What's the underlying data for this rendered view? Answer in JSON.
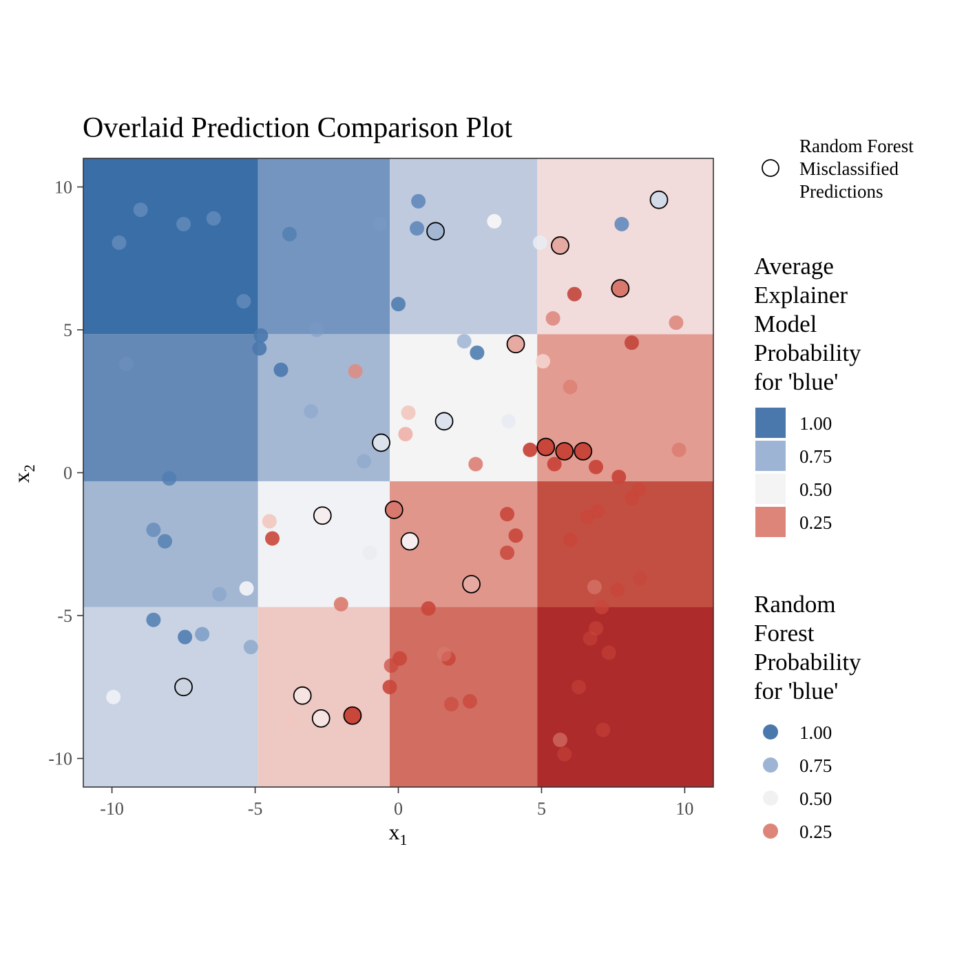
{
  "chart_data": {
    "type": "scatter",
    "title": "Overlaid Prediction Comparison Plot",
    "xlabel": "x",
    "xlabel_sub": "1",
    "ylabel": "x",
    "ylabel_sub": "2",
    "xlim": [
      -11,
      11
    ],
    "ylim": [
      -11,
      11
    ],
    "xticks": [
      -10,
      -5,
      0,
      5,
      10
    ],
    "yticks": [
      -10,
      -5,
      0,
      5,
      10
    ],
    "xtick_labels": [
      "-10",
      "-5",
      "0",
      "5",
      "10"
    ],
    "ytick_labels": [
      "-10",
      "-5",
      "0",
      "5",
      "10"
    ],
    "grid": false,
    "tiles": {
      "x_breaks": [
        -11,
        -4.9,
        -0.3,
        4.85,
        11
      ],
      "y_breaks": [
        -11,
        -4.7,
        -0.3,
        4.85,
        11
      ],
      "colors": [
        [
          "#c9d3e3",
          "#eec8c2",
          "#d16d61",
          "#ad2b2b"
        ],
        [
          "#a3b7d3",
          "#f1f2f5",
          "#e1968c",
          "#c34f43"
        ],
        [
          "#6489b7",
          "#a4b8d4",
          "#f4f4f4",
          "#e39c92"
        ],
        [
          "#396ea7",
          "#7395c0",
          "#bfcadf",
          "#f1dbdb"
        ]
      ]
    },
    "points": [
      {
        "x": -9.75,
        "y": 8.05,
        "color": "#7b9bc6",
        "alpha": 0.55
      },
      {
        "x": -9.0,
        "y": 9.2,
        "color": "#7b9bc6",
        "alpha": 0.55
      },
      {
        "x": -7.5,
        "y": 8.7,
        "color": "#7b9bc6",
        "alpha": 0.55
      },
      {
        "x": -6.45,
        "y": 8.9,
        "color": "#7b9bc6",
        "alpha": 0.55
      },
      {
        "x": -5.4,
        "y": 6.0,
        "color": "#7b9bc6",
        "alpha": 0.55
      },
      {
        "x": -3.8,
        "y": 8.35,
        "color": "#4f7db0",
        "alpha": 0.8
      },
      {
        "x": -0.65,
        "y": 8.7,
        "color": "#7b9bc6",
        "alpha": 0.55
      },
      {
        "x": 0.7,
        "y": 9.5,
        "color": "#5a85b8",
        "alpha": 0.85
      },
      {
        "x": 0.65,
        "y": 8.55,
        "color": "#5a85b8",
        "alpha": 0.85
      },
      {
        "x": 0.0,
        "y": 5.9,
        "color": "#4f7db0",
        "alpha": 0.9
      },
      {
        "x": 3.35,
        "y": 8.8,
        "color": "#f4f4f6",
        "alpha": 1
      },
      {
        "x": 4.95,
        "y": 8.05,
        "color": "#e8ecf3",
        "alpha": 0.9
      },
      {
        "x": 7.8,
        "y": 8.7,
        "color": "#5a85b8",
        "alpha": 0.85
      },
      {
        "x": 6.15,
        "y": 6.25,
        "color": "#c1453a",
        "alpha": 0.9
      },
      {
        "x": 5.4,
        "y": 5.4,
        "color": "#dc7e73",
        "alpha": 0.8
      },
      {
        "x": 9.7,
        "y": 5.25,
        "color": "#dc7e73",
        "alpha": 0.8
      },
      {
        "x": 8.15,
        "y": 4.55,
        "color": "#c1453a",
        "alpha": 0.9
      },
      {
        "x": -4.8,
        "y": 4.8,
        "color": "#4a78ad",
        "alpha": 0.9
      },
      {
        "x": -4.85,
        "y": 4.35,
        "color": "#4a78ad",
        "alpha": 0.9
      },
      {
        "x": -2.85,
        "y": 5.0,
        "color": "#7b9bc6",
        "alpha": 0.55
      },
      {
        "x": -9.5,
        "y": 3.8,
        "color": "#7b9bc6",
        "alpha": 0.25
      },
      {
        "x": -4.1,
        "y": 3.6,
        "color": "#4a78ad",
        "alpha": 0.9
      },
      {
        "x": -3.05,
        "y": 2.15,
        "color": "#8fa9cd",
        "alpha": 0.75
      },
      {
        "x": -1.5,
        "y": 3.55,
        "color": "#e08a7f",
        "alpha": 0.85
      },
      {
        "x": -1.2,
        "y": 0.4,
        "color": "#8fa9cd",
        "alpha": 0.75
      },
      {
        "x": 2.3,
        "y": 4.6,
        "color": "#9db4d4",
        "alpha": 0.85
      },
      {
        "x": 2.75,
        "y": 4.2,
        "color": "#4f7db0",
        "alpha": 0.9
      },
      {
        "x": 5.05,
        "y": 3.9,
        "color": "#f4d4cf",
        "alpha": 0.9
      },
      {
        "x": 6.0,
        "y": 3.0,
        "color": "#dc7e73",
        "alpha": 0.8
      },
      {
        "x": 0.35,
        "y": 2.1,
        "color": "#f1c6bf",
        "alpha": 0.9
      },
      {
        "x": 0.25,
        "y": 1.35,
        "color": "#ee b0a8",
        "alpha": 0.9
      },
      {
        "x": 3.85,
        "y": 1.8,
        "color": "#e8ecf3",
        "alpha": 0.9
      },
      {
        "x": 2.7,
        "y": 0.3,
        "color": "#dc7e73",
        "alpha": 0.9
      },
      {
        "x": 4.6,
        "y": 0.8,
        "color": "#c9463b",
        "alpha": 0.95
      },
      {
        "x": 5.45,
        "y": 0.3,
        "color": "#c9463b",
        "alpha": 0.95
      },
      {
        "x": 6.9,
        "y": 0.2,
        "color": "#c9463b",
        "alpha": 0.95
      },
      {
        "x": 9.8,
        "y": 0.8,
        "color": "#dc7e73",
        "alpha": 0.9
      },
      {
        "x": 7.7,
        "y": -0.15,
        "color": "#c9463b",
        "alpha": 0.95
      },
      {
        "x": 8.4,
        "y": -0.6,
        "color": "#c9463b",
        "alpha": 0.85
      },
      {
        "x": 8.15,
        "y": -0.9,
        "color": "#c9463b",
        "alpha": 0.85
      },
      {
        "x": 6.95,
        "y": -1.35,
        "color": "#c9463b",
        "alpha": 0.85
      },
      {
        "x": 6.6,
        "y": -1.55,
        "color": "#c9463b",
        "alpha": 0.85
      },
      {
        "x": 6.0,
        "y": -2.35,
        "color": "#c9463b",
        "alpha": 0.9
      },
      {
        "x": 8.45,
        "y": -3.7,
        "color": "#c9463b",
        "alpha": 0.55
      },
      {
        "x": 6.85,
        "y": -4.0,
        "color": "#dc7e73",
        "alpha": 0.6
      },
      {
        "x": 7.65,
        "y": -4.1,
        "color": "#c9463b",
        "alpha": 0.9
      },
      {
        "x": 7.1,
        "y": -4.7,
        "color": "#c9463b",
        "alpha": 0.75
      },
      {
        "x": 6.9,
        "y": -5.45,
        "color": "#c9463b",
        "alpha": 0.6
      },
      {
        "x": 6.7,
        "y": -5.8,
        "color": "#c9463b",
        "alpha": 0.5
      },
      {
        "x": 7.35,
        "y": -6.3,
        "color": "#c9463b",
        "alpha": 0.5
      },
      {
        "x": 6.3,
        "y": -7.5,
        "color": "#c9463b",
        "alpha": 0.5
      },
      {
        "x": 7.15,
        "y": -9.0,
        "color": "#c9463b",
        "alpha": 0.5
      },
      {
        "x": 5.65,
        "y": -9.35,
        "color": "#dc7e73",
        "alpha": 0.6
      },
      {
        "x": 5.8,
        "y": -9.85,
        "color": "#c9463b",
        "alpha": 0.5
      },
      {
        "x": -8.0,
        "y": -0.2,
        "color": "#4f7db0",
        "alpha": 0.8
      },
      {
        "x": -8.55,
        "y": -2.0,
        "color": "#4f7db0",
        "alpha": 0.6
      },
      {
        "x": -8.15,
        "y": -2.4,
        "color": "#4f7db0",
        "alpha": 0.8
      },
      {
        "x": -6.25,
        "y": -4.25,
        "color": "#7b9bc6",
        "alpha": 0.45
      },
      {
        "x": -5.3,
        "y": -4.05,
        "color": "#eceff5",
        "alpha": 1
      },
      {
        "x": -8.55,
        "y": -5.15,
        "color": "#4f7db0",
        "alpha": 0.85
      },
      {
        "x": -7.45,
        "y": -5.75,
        "color": "#4f7db0",
        "alpha": 0.9
      },
      {
        "x": -6.85,
        "y": -5.65,
        "color": "#7b9bc6",
        "alpha": 0.85
      },
      {
        "x": -5.15,
        "y": -6.1,
        "color": "#8fa9cd",
        "alpha": 0.85
      },
      {
        "x": -9.95,
        "y": -7.85,
        "color": "#eceff5",
        "alpha": 1
      },
      {
        "x": -4.5,
        "y": -1.7,
        "color": "#f1c6bf",
        "alpha": 0.9
      },
      {
        "x": -4.4,
        "y": -2.3,
        "color": "#c9463b",
        "alpha": 0.9
      },
      {
        "x": -1.0,
        "y": -2.8,
        "color": "#e5e7ec",
        "alpha": 0.5
      },
      {
        "x": 3.8,
        "y": -1.45,
        "color": "#c9463b",
        "alpha": 0.9
      },
      {
        "x": 4.1,
        "y": -2.2,
        "color": "#c9463b",
        "alpha": 0.9
      },
      {
        "x": 3.8,
        "y": -2.8,
        "color": "#c9463b",
        "alpha": 0.85
      },
      {
        "x": -2.0,
        "y": -4.6,
        "color": "#dc7e73",
        "alpha": 0.95
      },
      {
        "x": 1.05,
        "y": -4.75,
        "color": "#c9463b",
        "alpha": 0.9
      },
      {
        "x": 0.05,
        "y": -6.5,
        "color": "#c9463b",
        "alpha": 0.9
      },
      {
        "x": 1.75,
        "y": -6.5,
        "color": "#c9463b",
        "alpha": 0.9
      },
      {
        "x": -0.25,
        "y": -6.75,
        "color": "#c9463b",
        "alpha": 0.7
      },
      {
        "x": 1.6,
        "y": -6.35,
        "color": "#dc7e73",
        "alpha": 0.5
      },
      {
        "x": -0.3,
        "y": -7.5,
        "color": "#c9463b",
        "alpha": 0.9
      },
      {
        "x": 2.5,
        "y": -8.0,
        "color": "#c9463b",
        "alpha": 0.75
      },
      {
        "x": 1.85,
        "y": -8.1,
        "color": "#c9463b",
        "alpha": 0.65
      },
      {
        "x": -3.8,
        "y": -8.65,
        "color": "#f1c6bf",
        "alpha": 0.6
      },
      {
        "x": -1.6,
        "y": -8.5,
        "color": "#c9463b",
        "alpha": 0.9
      }
    ],
    "misclassified": [
      {
        "x": 9.1,
        "y": 9.55,
        "color": "#d3dbe8"
      },
      {
        "x": 1.3,
        "y": 8.45,
        "color": "#a3b7d3"
      },
      {
        "x": 5.65,
        "y": 7.95,
        "color": "#e7aaa2"
      },
      {
        "x": 7.75,
        "y": 6.45,
        "color": "#d9796d"
      },
      {
        "x": 4.1,
        "y": 4.5,
        "color": "#e7aaa2"
      },
      {
        "x": 1.6,
        "y": 1.8,
        "color": "#dce3ed"
      },
      {
        "x": -0.6,
        "y": 1.05,
        "color": "#dce3ed"
      },
      {
        "x": 5.15,
        "y": 0.9,
        "color": "#c9463b"
      },
      {
        "x": 5.8,
        "y": 0.75,
        "color": "#c9463b"
      },
      {
        "x": 6.45,
        "y": 0.75,
        "color": "#c9463b"
      },
      {
        "x": -2.65,
        "y": -1.5,
        "color": "#f6edee"
      },
      {
        "x": -0.15,
        "y": -1.3,
        "color": "#d9796d"
      },
      {
        "x": 0.4,
        "y": -2.4,
        "color": "#f6edee"
      },
      {
        "x": 2.55,
        "y": -3.9,
        "color": "#e7aaa2"
      },
      {
        "x": -7.5,
        "y": -7.5,
        "color": "#ccd3e1"
      },
      {
        "x": -3.35,
        "y": -7.8,
        "color": "#f6e4e2"
      },
      {
        "x": -2.7,
        "y": -8.6,
        "color": "#f6e4e2"
      },
      {
        "x": -1.6,
        "y": -8.5,
        "color": "#c9463b"
      }
    ],
    "legends": {
      "misclassified": {
        "title": "",
        "label_lines": [
          "Random Forest",
          "Misclassified",
          "Predictions"
        ]
      },
      "tiles": {
        "title_lines": [
          "Average",
          "Explainer",
          "Model",
          "Probability",
          "for 'blue'"
        ],
        "entries": [
          {
            "label": "1.00",
            "color": "#4a78ad"
          },
          {
            "label": "0.75",
            "color": "#9db4d4"
          },
          {
            "label": "0.50",
            "color": "#f4f4f4"
          },
          {
            "label": "0.25",
            "color": "#de857a"
          }
        ]
      },
      "points": {
        "title_lines": [
          "Random",
          "Forest",
          "Probability",
          "for 'blue'"
        ],
        "entries": [
          {
            "label": "1.00",
            "color": "#4a78ad"
          },
          {
            "label": "0.75",
            "color": "#9db4d4"
          },
          {
            "label": "0.50",
            "color": "#f1f1f1"
          },
          {
            "label": "0.25",
            "color": "#de857a"
          }
        ]
      }
    }
  }
}
